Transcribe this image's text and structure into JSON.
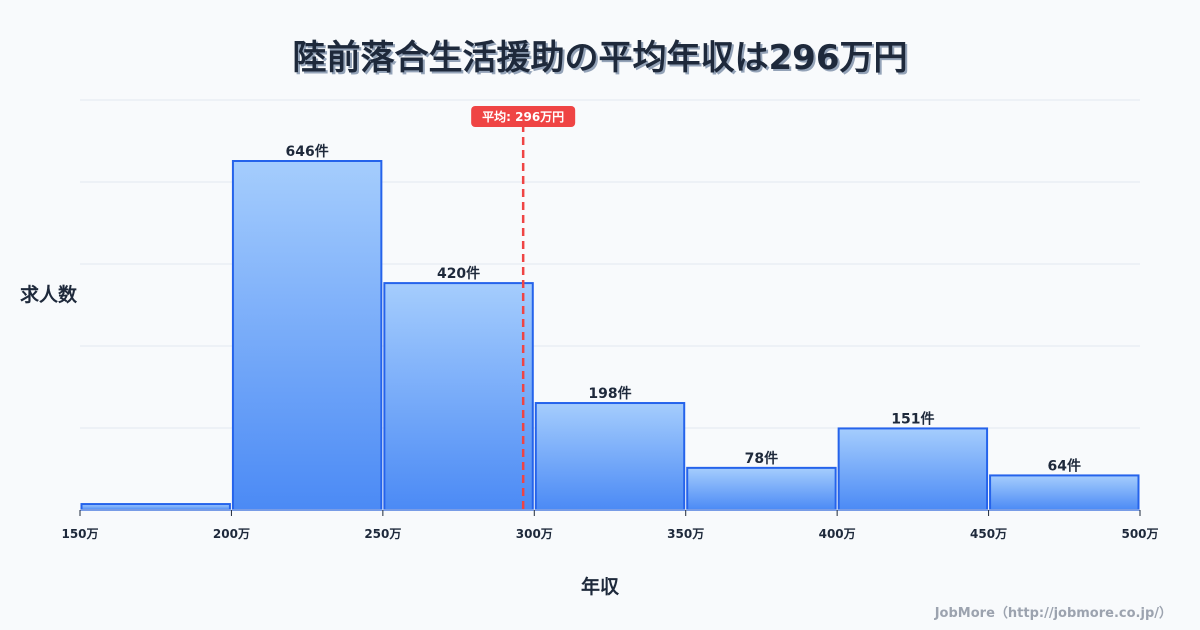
{
  "title": "陸前落合生活援助の平均年収は296万円",
  "y_axis_label": "求人数",
  "x_axis_label": "年収",
  "footer": "JobMore（http://jobmore.co.jp/）",
  "mean_marker": {
    "label": "平均: 296万円",
    "value": 296,
    "color": "#ef4444"
  },
  "colors": {
    "bar_top": "#a5cdfd",
    "bar_bottom": "#4b8af5",
    "bar_border": "#2563eb",
    "grid": "#e2e8f0"
  },
  "chart_data": {
    "type": "bar",
    "title": "陸前落合生活援助の平均年収は296万円",
    "xlabel": "年収",
    "ylabel": "求人数",
    "bin_edges": [
      150,
      200,
      250,
      300,
      350,
      400,
      450,
      500
    ],
    "tick_labels": [
      "150万",
      "200万",
      "250万",
      "300万",
      "350万",
      "400万",
      "450万",
      "500万"
    ],
    "categories": [
      "150-200万",
      "200-250万",
      "250-300万",
      "300-350万",
      "350-400万",
      "400-450万",
      "450-500万"
    ],
    "values": [
      11,
      646,
      420,
      198,
      78,
      151,
      64
    ],
    "value_labels": [
      "",
      "646件",
      "420件",
      "198件",
      "78件",
      "151件",
      "64件"
    ],
    "mean": 296,
    "ylim": [
      0,
      760
    ],
    "grid": true,
    "legend": null
  }
}
